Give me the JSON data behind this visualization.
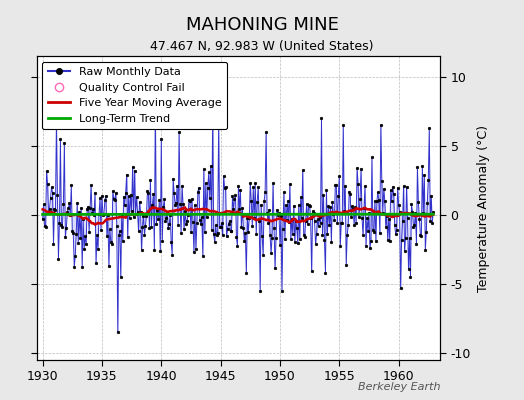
{
  "title": "MAHONING MINE",
  "subtitle": "47.467 N, 92.983 W (United States)",
  "ylabel": "Temperature Anomaly (°C)",
  "watermark": "Berkeley Earth",
  "ylim": [
    -10.5,
    11.5
  ],
  "xlim": [
    1929.5,
    1963.5
  ],
  "yticks": [
    -10,
    -5,
    0,
    5,
    10
  ],
  "xticks": [
    1930,
    1935,
    1940,
    1945,
    1950,
    1955,
    1960
  ],
  "bg_color": "#e8e8e8",
  "plot_bg_color": "#ffffff",
  "raw_line_color": "#3333cc",
  "raw_fill_color": "#aaaaff",
  "raw_marker_color": "#000000",
  "ma_color": "#cc0000",
  "trend_color": "#00aa00",
  "qc_color": "#ff69b4",
  "grid_color": "#bbbbbb",
  "title_fontsize": 13,
  "subtitle_fontsize": 9,
  "legend_fontsize": 8,
  "tick_fontsize": 9,
  "ylabel_fontsize": 9
}
